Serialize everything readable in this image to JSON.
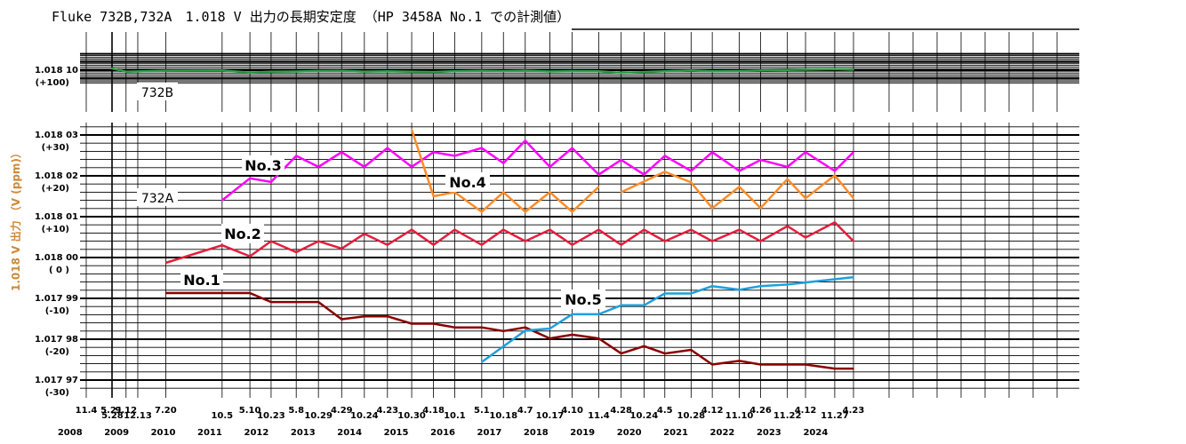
{
  "chart_data": {
    "type": "line",
    "title": "Fluke 732B,732A　1.018 V 出力の長期安定度 （HP 3458A No.1 での計測値）",
    "ylabel": "1.018 V 出力 （V (ppm)）",
    "x_date_labels": [
      {
        "label": "11.4",
        "date": "2008-11-04",
        "row": 0
      },
      {
        "label": "5.21",
        "date": "2009-05-21",
        "row": 0
      },
      {
        "label": "5.28",
        "date": "2009-05-28",
        "row": 1
      },
      {
        "label": "9.12",
        "date": "2009-09-12",
        "row": 0
      },
      {
        "label": "12.13",
        "date": "2009-12-13",
        "row": 1
      },
      {
        "label": "7.20",
        "date": "2010-07-20",
        "row": 0
      },
      {
        "label": "10.5",
        "date": "2011-10-05",
        "row": 1
      },
      {
        "label": "5.10",
        "date": "2012-05-10",
        "row": 0
      },
      {
        "label": "10.23",
        "date": "2012-10-23",
        "row": 1
      },
      {
        "label": "5.8",
        "date": "2013-05-08",
        "row": 0
      },
      {
        "label": "10.29",
        "date": "2013-10-29",
        "row": 1
      },
      {
        "label": "4.29",
        "date": "2014-04-29",
        "row": 0
      },
      {
        "label": "10.24",
        "date": "2014-10-24",
        "row": 1
      },
      {
        "label": "4.23",
        "date": "2015-04-23",
        "row": 0
      },
      {
        "label": "10.30",
        "date": "2015-10-30",
        "row": 1
      },
      {
        "label": "4.18",
        "date": "2016-04-18",
        "row": 0
      },
      {
        "label": "10.1",
        "date": "2016-10-01",
        "row": 1
      },
      {
        "label": "5.1",
        "date": "2017-05-01",
        "row": 0
      },
      {
        "label": "10.18",
        "date": "2017-10-18",
        "row": 1
      },
      {
        "label": "4.7",
        "date": "2018-04-07",
        "row": 0
      },
      {
        "label": "10.17",
        "date": "2018-10-17",
        "row": 1
      },
      {
        "label": "4.10",
        "date": "2019-04-10",
        "row": 0
      },
      {
        "label": "11.4",
        "date": "2019-11-04",
        "row": 1
      },
      {
        "label": "4.28",
        "date": "2020-04-28",
        "row": 0
      },
      {
        "label": "10.24",
        "date": "2020-10-24",
        "row": 1
      },
      {
        "label": "4.5",
        "date": "2021-04-05",
        "row": 0
      },
      {
        "label": "10.28",
        "date": "2021-10-28",
        "row": 1
      },
      {
        "label": "4.12",
        "date": "2022-04-12",
        "row": 0
      },
      {
        "label": "11.10",
        "date": "2022-11-10",
        "row": 1
      },
      {
        "label": "4.26",
        "date": "2023-04-26",
        "row": 0
      },
      {
        "label": "11.22",
        "date": "2023-11-22",
        "row": 1
      },
      {
        "label": "4.12",
        "date": "2024-04-12",
        "row": 0
      },
      {
        "label": "11.27",
        "date": "2024-11-27",
        "row": 1
      },
      {
        "label": "4.23",
        "date": "2025-04-23",
        "row": 0
      }
    ],
    "year_labels": [
      "2008",
      "2009",
      "2010",
      "2011",
      "2012",
      "2013",
      "2014",
      "2015",
      "2016",
      "2017",
      "2018",
      "2019",
      "2020",
      "2021",
      "2022",
      "2023",
      "2024"
    ],
    "upper_panel": {
      "ylim_ppm": [
        84,
        120
      ],
      "y_ticks": [
        {
          "value": 100,
          "label": "1.018 10",
          "sub": "(+100)"
        }
      ],
      "series": [
        {
          "name": "732B",
          "color": "#2e9e46",
          "points": [
            [
              "2009-05-21",
              102.3
            ],
            [
              "2009-09-12",
              98.1
            ],
            [
              "2010-07-20",
              99.4
            ],
            [
              "2011-10-05",
              99.6
            ],
            [
              "2012-05-10",
              97.2
            ],
            [
              "2012-10-23",
              98.2
            ],
            [
              "2013-05-08",
              98.4
            ],
            [
              "2013-10-29",
              99.0
            ],
            [
              "2014-04-29",
              99.1
            ],
            [
              "2014-10-24",
              98.3
            ],
            [
              "2015-04-23",
              98.7
            ],
            [
              "2015-10-30",
              98.0
            ],
            [
              "2016-04-18",
              97.7
            ],
            [
              "2016-10-01",
              98.7
            ],
            [
              "2017-05-01",
              99.2
            ],
            [
              "2017-10-18",
              98.8
            ],
            [
              "2018-04-07",
              99.3
            ],
            [
              "2018-10-17",
              98.4
            ],
            [
              "2019-04-10",
              98.8
            ],
            [
              "2019-11-04",
              98.7
            ],
            [
              "2020-04-28",
              96.6
            ],
            [
              "2020-10-24",
              97.7
            ],
            [
              "2021-04-05",
              98.7
            ],
            [
              "2021-10-28",
              99.6
            ],
            [
              "2022-04-12",
              98.6
            ],
            [
              "2022-11-10",
              98.9
            ],
            [
              "2023-04-26",
              99.6
            ],
            [
              "2023-11-22",
              100.3
            ],
            [
              "2024-04-12",
              100.7
            ],
            [
              "2024-11-27",
              101.3
            ],
            [
              "2025-04-23",
              100.5
            ]
          ]
        }
      ]
    },
    "lower_panel": {
      "ylim_ppm": [
        -32,
        33
      ],
      "y_ticks": [
        {
          "value": 30,
          "label": "1.018 03",
          "sub": "(+30)"
        },
        {
          "value": 20,
          "label": "1.018 02",
          "sub": "(+20)"
        },
        {
          "value": 10,
          "label": "1.018 01",
          "sub": "(+10)"
        },
        {
          "value": 0,
          "label": "1.018 00",
          "sub": "( 0 )"
        },
        {
          "value": -10,
          "label": "1.017 99",
          "sub": "(-10)"
        },
        {
          "value": -20,
          "label": "1.017 98",
          "sub": "(-20)"
        },
        {
          "value": -30,
          "label": "1.017 97",
          "sub": "(-30)"
        }
      ],
      "series": [
        {
          "name": "No.1",
          "color": "#8b0000",
          "points": [
            [
              "2010-07-20",
              -8.7
            ],
            [
              "2011-10-05",
              -8.7
            ],
            [
              "2012-05-10",
              -8.7
            ],
            [
              "2012-10-23",
              -10.9
            ],
            [
              "2013-05-08",
              -10.9
            ],
            [
              "2013-10-29",
              -10.9
            ],
            [
              "2014-04-29",
              -15.1
            ],
            [
              "2014-10-24",
              -14.4
            ],
            [
              "2015-04-23",
              -14.4
            ],
            [
              "2015-10-30",
              -16.2
            ],
            [
              "2016-04-18",
              -16.2
            ],
            [
              "2016-10-01",
              -17.1
            ],
            [
              "2017-05-01",
              -17.1
            ],
            [
              "2017-10-18",
              -18.0
            ],
            [
              "2018-04-07",
              -17.1
            ],
            [
              "2018-10-17",
              -19.8
            ],
            [
              "2019-04-10",
              -18.9
            ],
            [
              "2019-11-04",
              -19.8
            ],
            [
              "2020-04-28",
              -23.5
            ],
            [
              "2020-10-24",
              -21.7
            ],
            [
              "2021-04-05",
              -23.5
            ],
            [
              "2021-10-28",
              -22.6
            ],
            [
              "2022-04-12",
              -26.2
            ],
            [
              "2022-11-10",
              -25.3
            ],
            [
              "2023-04-26",
              -26.2
            ],
            [
              "2023-11-22",
              -26.2
            ],
            [
              "2024-04-12",
              -26.2
            ],
            [
              "2024-11-27",
              -27.2
            ],
            [
              "2025-04-23",
              -27.2
            ]
          ]
        },
        {
          "name": "No.2",
          "color": "#e31e3c",
          "points": [
            [
              "2010-07-20",
              -1.3
            ],
            [
              "2011-10-05",
              3.0
            ],
            [
              "2012-05-10",
              0.3
            ],
            [
              "2012-10-23",
              4.0
            ],
            [
              "2013-05-08",
              1.3
            ],
            [
              "2013-10-29",
              4.0
            ],
            [
              "2014-04-29",
              2.2
            ],
            [
              "2014-10-24",
              5.8
            ],
            [
              "2015-04-23",
              3.1
            ],
            [
              "2015-10-30",
              6.8
            ],
            [
              "2016-04-18",
              3.1
            ],
            [
              "2016-10-01",
              6.8
            ],
            [
              "2017-05-01",
              3.1
            ],
            [
              "2017-10-18",
              6.8
            ],
            [
              "2018-04-07",
              4.0
            ],
            [
              "2018-10-17",
              6.8
            ],
            [
              "2019-04-10",
              3.1
            ],
            [
              "2019-11-04",
              6.8
            ],
            [
              "2020-04-28",
              3.1
            ],
            [
              "2020-10-24",
              6.8
            ],
            [
              "2021-04-05",
              4.0
            ],
            [
              "2021-10-28",
              6.8
            ],
            [
              "2022-04-12",
              4.0
            ],
            [
              "2022-11-10",
              6.8
            ],
            [
              "2023-04-26",
              4.0
            ],
            [
              "2023-11-22",
              7.7
            ],
            [
              "2024-04-12",
              4.9
            ],
            [
              "2024-11-27",
              8.6
            ],
            [
              "2025-04-23",
              4.0
            ]
          ]
        },
        {
          "name": "No.3",
          "color": "#ff00ff",
          "points": [
            [
              "2011-10-05",
              14.0
            ],
            [
              "2012-05-10",
              19.4
            ],
            [
              "2012-10-23",
              18.5
            ],
            [
              "2013-05-08",
              24.9
            ],
            [
              "2013-10-29",
              22.2
            ],
            [
              "2014-04-29",
              25.8
            ],
            [
              "2014-10-24",
              22.2
            ],
            [
              "2015-04-23",
              26.8
            ],
            [
              "2015-10-30",
              22.2
            ],
            [
              "2016-04-18",
              25.8
            ],
            [
              "2016-10-01",
              24.9
            ],
            [
              "2017-05-01",
              26.8
            ],
            [
              "2017-10-18",
              23.1
            ],
            [
              "2018-04-07",
              28.6
            ],
            [
              "2018-10-17",
              22.2
            ],
            [
              "2018-10-17",
              22.2
            ],
            [
              "2019-04-10",
              26.8
            ],
            [
              "2019-11-04",
              20.3
            ],
            [
              "2020-04-28",
              23.9
            ],
            [
              "2020-10-24",
              20.3
            ],
            [
              "2021-04-05",
              24.9
            ],
            [
              "2021-10-28",
              21.2
            ],
            [
              "2022-04-12",
              25.8
            ],
            [
              "2022-11-10",
              21.2
            ],
            [
              "2023-04-26",
              23.9
            ],
            [
              "2023-11-22",
              22.2
            ],
            [
              "2024-04-12",
              25.8
            ],
            [
              "2024-11-27",
              21.2
            ],
            [
              "2025-04-23",
              25.8
            ]
          ]
        },
        {
          "name": "No.4",
          "color": "#ff8c28",
          "points": [
            [
              "2015-10-30",
              31.3
            ],
            [
              "2016-04-18",
              15.0
            ],
            [
              "2016-10-01",
              16.0
            ],
            [
              "2017-05-01",
              11.2
            ],
            [
              "2017-10-18",
              16.0
            ],
            [
              "2018-04-07",
              11.2
            ],
            [
              "2018-10-17",
              16.0
            ],
            [
              "2019-04-10",
              11.2
            ],
            [
              "2019-11-04",
              17.3
            ]
          ]
        },
        {
          "name": "No.4",
          "color": "#ff8c28",
          "points": [
            [
              "2020-04-28",
              16.0
            ],
            [
              "2021-04-05",
              21.0
            ],
            [
              "2021-10-28",
              18.4
            ],
            [
              "2022-04-12",
              12.1
            ],
            [
              "2022-11-10",
              17.3
            ],
            [
              "2023-04-26",
              12.1
            ],
            [
              "2023-11-22",
              19.2
            ],
            [
              "2024-04-12",
              14.5
            ],
            [
              "2024-11-27",
              20.1
            ],
            [
              "2025-04-23",
              14.5
            ]
          ]
        },
        {
          "name": "No.5",
          "color": "#1ea0dc",
          "points": [
            [
              "2017-05-01",
              -25.6
            ],
            [
              "2018-04-07",
              -17.9
            ],
            [
              "2018-10-17",
              -17.4
            ],
            [
              "2019-04-10",
              -13.9
            ],
            [
              "2019-11-04",
              -13.9
            ],
            [
              "2020-04-28",
              -11.7
            ],
            [
              "2020-10-24",
              -11.7
            ],
            [
              "2021-04-05",
              -8.8
            ],
            [
              "2021-10-28",
              -8.8
            ],
            [
              "2022-04-12",
              -7.0
            ],
            [
              "2022-11-10",
              -7.9
            ],
            [
              "2023-04-26",
              -7.0
            ],
            [
              "2023-11-22",
              -6.6
            ],
            [
              "2024-04-12",
              -6.1
            ],
            [
              "2025-04-23",
              -4.8
            ]
          ]
        }
      ]
    },
    "series_labels": [
      {
        "text": "732B",
        "panel": "upper",
        "style": "plain"
      },
      {
        "text": "No.3",
        "panel": "lower",
        "style": "bold"
      },
      {
        "text": "No.4",
        "panel": "lower",
        "style": "bold"
      },
      {
        "text": "732A",
        "panel": "lower",
        "style": "plain"
      },
      {
        "text": "No.2",
        "panel": "lower",
        "style": "bold"
      },
      {
        "text": "No.1",
        "panel": "lower",
        "style": "bold"
      },
      {
        "text": "No.5",
        "panel": "lower",
        "style": "bold"
      }
    ],
    "grid": true,
    "colors": {
      "grid": "#000000",
      "ylabel": "#cc8a3a",
      "background": "#ffffff"
    }
  }
}
